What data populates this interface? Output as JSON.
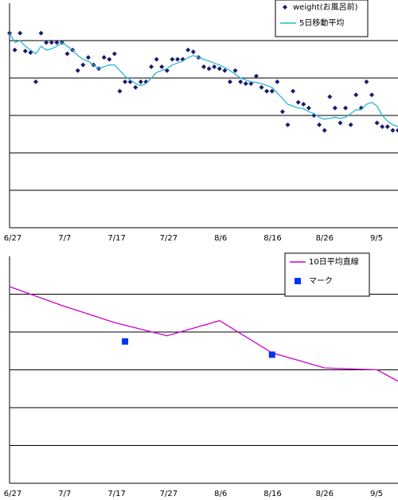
{
  "chart_data": [
    {
      "type": "scatter",
      "x_ticks": [
        "6/27",
        "7/7",
        "7/17",
        "7/27",
        "8/6",
        "8/16",
        "8/26",
        "9/5"
      ],
      "x_range": [
        0,
        74
      ],
      "y_range": [
        0,
        6
      ],
      "grid": true,
      "legend_position": "top-right",
      "colors": {
        "points": "#1a1a6e",
        "line": "#29b6d6",
        "grid": "#000000"
      },
      "series": [
        {
          "name": "weight(お風呂前)",
          "kind": "points",
          "x": [
            0,
            1,
            2,
            3,
            4,
            5,
            6,
            7,
            8,
            9,
            10,
            11,
            12,
            13,
            14,
            15,
            16,
            17,
            18,
            19,
            20,
            21,
            22,
            23,
            24,
            25,
            26,
            27,
            28,
            29,
            30,
            31,
            32,
            33,
            34,
            35,
            36,
            37,
            38,
            39,
            40,
            41,
            42,
            43,
            44,
            45,
            46,
            47,
            48,
            49,
            50,
            51,
            52,
            53,
            54,
            55,
            56,
            57,
            58,
            59,
            60,
            61,
            62,
            63,
            64,
            65,
            66,
            67,
            68,
            69,
            70,
            71,
            72,
            73,
            74
          ],
          "y": [
            5.2,
            4.75,
            5.2,
            4.72,
            4.68,
            3.9,
            5.2,
            4.95,
            4.95,
            4.95,
            4.95,
            4.65,
            4.75,
            4.2,
            4.35,
            4.55,
            4.35,
            4.25,
            4.55,
            4.5,
            4.65,
            3.65,
            3.9,
            3.9,
            3.75,
            3.9,
            3.9,
            4.3,
            4.5,
            4.3,
            4.2,
            4.5,
            4.5,
            4.5,
            4.75,
            4.7,
            4.55,
            4.3,
            4.25,
            4.3,
            4.25,
            4.2,
            3.9,
            4.2,
            3.9,
            3.85,
            3.85,
            4.05,
            3.75,
            3.65,
            3.65,
            3.9,
            3.1,
            2.75,
            3.65,
            3.35,
            3.3,
            3.2,
            3.0,
            2.75,
            2.6,
            3.5,
            3.2,
            2.8,
            3.2,
            2.75,
            3.55,
            3.2,
            3.9,
            3.55,
            2.8,
            2.7,
            2.7,
            2.6,
            2.6
          ]
        },
        {
          "name": "5日移動平均",
          "kind": "line",
          "x": [
            0,
            1,
            2,
            3,
            4,
            5,
            6,
            7,
            8,
            9,
            10,
            11,
            12,
            13,
            14,
            15,
            16,
            17,
            18,
            19,
            20,
            21,
            22,
            23,
            24,
            25,
            26,
            27,
            28,
            29,
            30,
            31,
            32,
            33,
            34,
            35,
            36,
            37,
            38,
            39,
            40,
            41,
            42,
            43,
            44,
            45,
            46,
            47,
            48,
            49,
            50,
            51,
            52,
            53,
            54,
            55,
            56,
            57,
            58,
            59,
            60,
            61,
            62,
            63,
            64,
            65,
            66,
            67,
            68,
            69,
            70,
            71,
            72,
            73,
            74
          ],
          "y": [
            5.2,
            4.95,
            5.0,
            4.85,
            4.75,
            4.65,
            4.85,
            4.75,
            4.78,
            4.85,
            4.95,
            4.85,
            4.75,
            4.6,
            4.5,
            4.45,
            4.35,
            4.25,
            4.3,
            4.35,
            4.35,
            4.2,
            4.05,
            3.95,
            3.85,
            3.8,
            3.85,
            4.0,
            4.15,
            4.2,
            4.25,
            4.35,
            4.4,
            4.45,
            4.55,
            4.6,
            4.55,
            4.5,
            4.45,
            4.4,
            4.35,
            4.28,
            4.2,
            4.1,
            4.0,
            3.95,
            3.9,
            3.88,
            3.85,
            3.8,
            3.75,
            3.6,
            3.45,
            3.3,
            3.25,
            3.2,
            3.18,
            3.1,
            3.05,
            2.95,
            2.9,
            2.92,
            2.95,
            2.92,
            2.95,
            3.05,
            3.15,
            3.15,
            3.3,
            3.35,
            3.25,
            3.0,
            2.85,
            2.75,
            2.7
          ]
        }
      ]
    },
    {
      "type": "line",
      "x_ticks": [
        "6/27",
        "7/7",
        "7/17",
        "7/27",
        "8/6",
        "8/16",
        "8/26",
        "9/5"
      ],
      "x_range": [
        0,
        74
      ],
      "y_range": [
        0,
        6
      ],
      "grid": true,
      "legend_position": "top-right",
      "colors": {
        "line": "#cc00cc",
        "marker": "#0033ee",
        "grid": "#000000"
      },
      "series": [
        {
          "name": "10日平均直線",
          "kind": "line",
          "x": [
            0,
            10,
            20,
            30,
            40,
            50,
            60,
            70,
            74
          ],
          "y": [
            5.2,
            4.7,
            4.25,
            3.9,
            4.3,
            3.45,
            3.05,
            3.0,
            2.7
          ]
        },
        {
          "name": "マーク",
          "kind": "markers",
          "x": [
            22,
            50
          ],
          "y": [
            3.75,
            3.4
          ]
        }
      ]
    }
  ]
}
